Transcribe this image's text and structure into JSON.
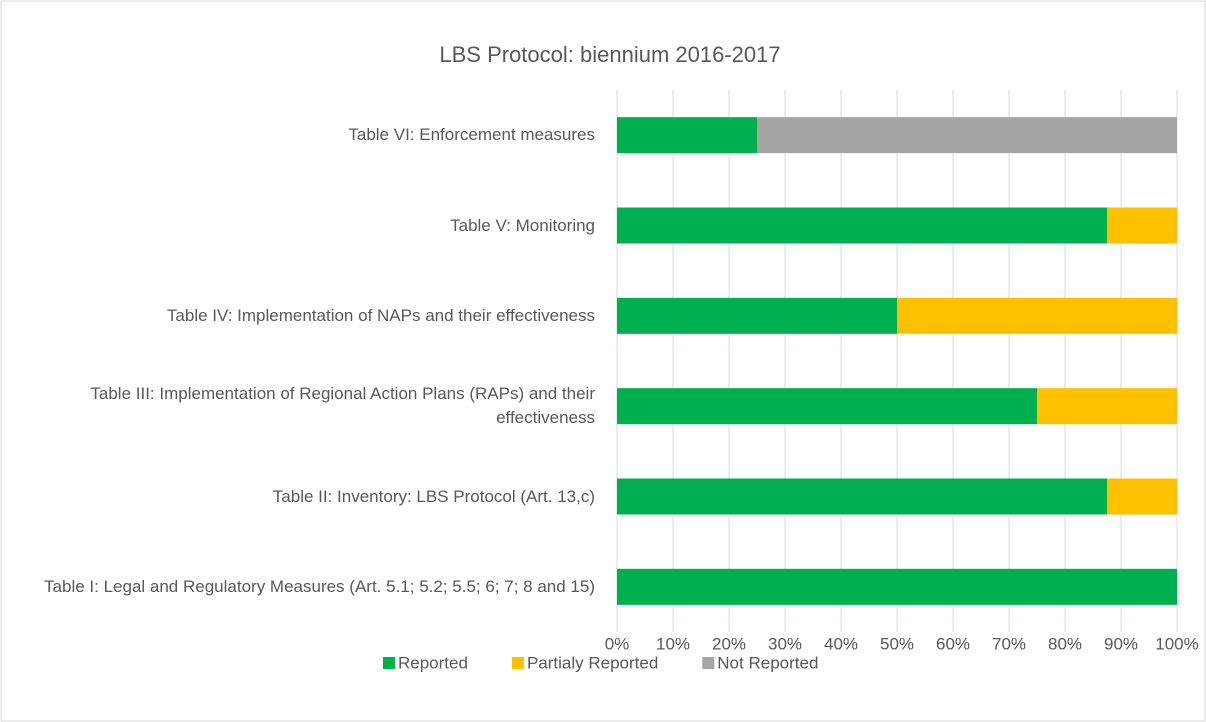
{
  "chart_data": {
    "type": "stacked-bar-horizontal",
    "title": "LBS Protocol: biennium 2016-2017",
    "categories": [
      "Table I: Legal and Regulatory Measures (Art. 5.1; 5.2; 5.5; 6; 7; 8 and 15)",
      "Table II: Inventory: LBS Protocol  (Art. 13,c)",
      "Table III: Implementation of Regional Action Plans (RAPs) and their effectiveness",
      "Table IV: Implementation of NAPs and their effectiveness",
      "Table V: Monitoring",
      "Table VI: Enforcement measures"
    ],
    "series": [
      {
        "name": "Reported",
        "color": "#00b050",
        "values": [
          100,
          87.5,
          75,
          50,
          87.5,
          25
        ]
      },
      {
        "name": "Partialy Reported",
        "color": "#ffc000",
        "values": [
          0,
          12.5,
          25,
          50,
          12.5,
          0
        ]
      },
      {
        "name": "Not Reported",
        "color": "#a5a5a5",
        "values": [
          0,
          0,
          0,
          0,
          0,
          75
        ]
      }
    ],
    "xlim": [
      0,
      100
    ],
    "xticks": [
      {
        "value": 0,
        "label": "0%"
      },
      {
        "value": 10,
        "label": "10%"
      },
      {
        "value": 20,
        "label": "20%"
      },
      {
        "value": 30,
        "label": "30%"
      },
      {
        "value": 40,
        "label": "40%"
      },
      {
        "value": 50,
        "label": "50%"
      },
      {
        "value": 60,
        "label": "60%"
      },
      {
        "value": 70,
        "label": "70%"
      },
      {
        "value": 80,
        "label": "80%"
      },
      {
        "value": 90,
        "label": "90%"
      },
      {
        "value": 100,
        "label": "100%"
      }
    ],
    "grid": true,
    "legend": "bottom"
  }
}
